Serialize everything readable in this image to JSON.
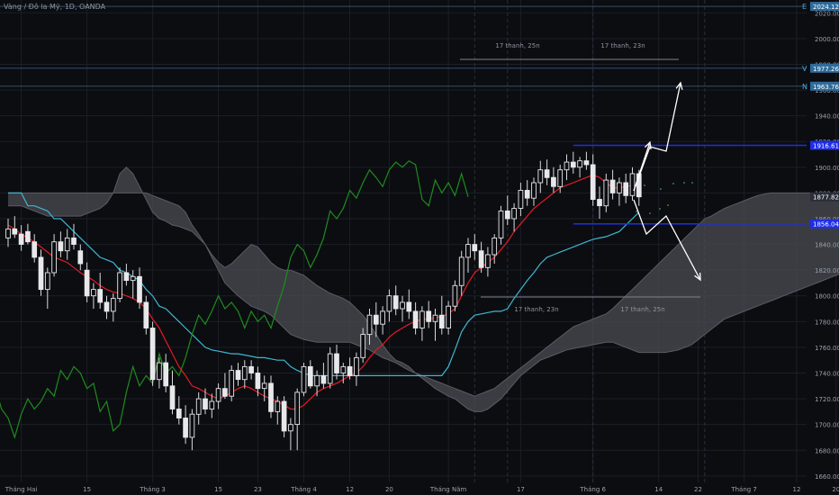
{
  "title": "Vàng / Đô la Mỹ, 1D, OANDA",
  "colors": {
    "background": "#0c0d11",
    "grid": "#1b1e27",
    "up": "#e8e8ea",
    "down": "#e8e8ea",
    "tenkan": "#e31b23",
    "kijun": "#3fb6d1",
    "chikou": "#1e8c1e",
    "cloud": "#4a4c53",
    "level": "#1f2de8",
    "axis_text": "#9aa0ab",
    "dashed_level": "#2f4f6a"
  },
  "chart_data": {
    "type": "candlestick",
    "ylim": [
      1655,
      2030
    ],
    "yticks": [
      "1660.000",
      "1680.000",
      "1700.000",
      "1720.000",
      "1740.000",
      "1760.000",
      "1780.000",
      "1800.000",
      "1820.000",
      "1840.000",
      "1860.000",
      "1880.000",
      "1900.000",
      "1920.000",
      "1940.000",
      "1960.000",
      "1980.000",
      "2000.000",
      "2020.000"
    ],
    "xticks": [
      {
        "label": "Tháng Hai",
        "i": 2
      },
      {
        "label": "15",
        "i": 12
      },
      {
        "label": "Tháng 3",
        "i": 22
      },
      {
        "label": "15",
        "i": 32
      },
      {
        "label": "23",
        "i": 38
      },
      {
        "label": "Tháng 4",
        "i": 45
      },
      {
        "label": "12",
        "i": 52
      },
      {
        "label": "20",
        "i": 58
      },
      {
        "label": "Tháng Năm",
        "i": 67
      },
      {
        "label": "17",
        "i": 78
      },
      {
        "label": "Tháng 6",
        "i": 89
      },
      {
        "label": "14",
        "i": 99
      },
      {
        "label": "22",
        "i": 105
      },
      {
        "label": "Tháng 7",
        "i": 112
      },
      {
        "label": "12",
        "i": 120
      },
      {
        "label": "20",
        "i": 126
      }
    ],
    "price_labels": [
      {
        "text": "2024.124",
        "price": 2025,
        "tag": "E"
      },
      {
        "text": "1977.265",
        "price": 1977,
        "tag": "V"
      },
      {
        "text": "1963.763",
        "price": 1963,
        "tag": "N"
      },
      {
        "text": "1916.615",
        "price": 1917,
        "tag": ""
      },
      {
        "text": "1877.820",
        "price": 1877,
        "tag": ""
      },
      {
        "text": "1856.040",
        "price": 1856,
        "tag": ""
      }
    ],
    "measure_labels": [
      {
        "text": "17 thanh, 25n",
        "i": 81,
        "price": 2006
      },
      {
        "text": "17 thanh, 23n",
        "i": 98,
        "price": 2006
      },
      {
        "text": "17 thanh, 23n",
        "i": 84,
        "price": 1790
      },
      {
        "text": "17 thanh, 25n",
        "i": 101,
        "price": 1790
      }
    ],
    "levels": [
      1917,
      1856
    ],
    "candles": [
      {
        "o": 1845,
        "h": 1860,
        "l": 1838,
        "c": 1852
      },
      {
        "o": 1852,
        "h": 1862,
        "l": 1845,
        "c": 1848
      },
      {
        "o": 1848,
        "h": 1855,
        "l": 1835,
        "c": 1840
      },
      {
        "o": 1850,
        "h": 1856,
        "l": 1840,
        "c": 1842
      },
      {
        "o": 1842,
        "h": 1848,
        "l": 1826,
        "c": 1830
      },
      {
        "o": 1830,
        "h": 1836,
        "l": 1800,
        "c": 1805
      },
      {
        "o": 1805,
        "h": 1822,
        "l": 1790,
        "c": 1818
      },
      {
        "o": 1818,
        "h": 1848,
        "l": 1815,
        "c": 1842
      },
      {
        "o": 1842,
        "h": 1850,
        "l": 1830,
        "c": 1835
      },
      {
        "o": 1835,
        "h": 1852,
        "l": 1828,
        "c": 1845
      },
      {
        "o": 1845,
        "h": 1856,
        "l": 1836,
        "c": 1840
      },
      {
        "o": 1835,
        "h": 1840,
        "l": 1820,
        "c": 1825
      },
      {
        "o": 1820,
        "h": 1826,
        "l": 1795,
        "c": 1800
      },
      {
        "o": 1800,
        "h": 1810,
        "l": 1790,
        "c": 1805
      },
      {
        "o": 1805,
        "h": 1818,
        "l": 1790,
        "c": 1795
      },
      {
        "o": 1795,
        "h": 1800,
        "l": 1782,
        "c": 1788
      },
      {
        "o": 1788,
        "h": 1802,
        "l": 1780,
        "c": 1798
      },
      {
        "o": 1798,
        "h": 1822,
        "l": 1795,
        "c": 1818
      },
      {
        "o": 1818,
        "h": 1825,
        "l": 1808,
        "c": 1812
      },
      {
        "o": 1812,
        "h": 1820,
        "l": 1798,
        "c": 1815
      },
      {
        "o": 1815,
        "h": 1822,
        "l": 1790,
        "c": 1795
      },
      {
        "o": 1795,
        "h": 1800,
        "l": 1770,
        "c": 1775
      },
      {
        "o": 1775,
        "h": 1780,
        "l": 1730,
        "c": 1735
      },
      {
        "o": 1735,
        "h": 1752,
        "l": 1728,
        "c": 1748
      },
      {
        "o": 1748,
        "h": 1755,
        "l": 1725,
        "c": 1730
      },
      {
        "o": 1730,
        "h": 1742,
        "l": 1708,
        "c": 1712
      },
      {
        "o": 1712,
        "h": 1722,
        "l": 1700,
        "c": 1705
      },
      {
        "o": 1705,
        "h": 1715,
        "l": 1685,
        "c": 1690
      },
      {
        "o": 1690,
        "h": 1712,
        "l": 1680,
        "c": 1708
      },
      {
        "o": 1708,
        "h": 1725,
        "l": 1700,
        "c": 1720
      },
      {
        "o": 1720,
        "h": 1728,
        "l": 1708,
        "c": 1712
      },
      {
        "o": 1712,
        "h": 1724,
        "l": 1705,
        "c": 1718
      },
      {
        "o": 1718,
        "h": 1732,
        "l": 1712,
        "c": 1728
      },
      {
        "o": 1728,
        "h": 1740,
        "l": 1720,
        "c": 1722
      },
      {
        "o": 1722,
        "h": 1746,
        "l": 1718,
        "c": 1742
      },
      {
        "o": 1742,
        "h": 1748,
        "l": 1730,
        "c": 1735
      },
      {
        "o": 1735,
        "h": 1750,
        "l": 1728,
        "c": 1745
      },
      {
        "o": 1745,
        "h": 1750,
        "l": 1735,
        "c": 1740
      },
      {
        "o": 1740,
        "h": 1745,
        "l": 1722,
        "c": 1728
      },
      {
        "o": 1728,
        "h": 1738,
        "l": 1718,
        "c": 1732
      },
      {
        "o": 1732,
        "h": 1738,
        "l": 1705,
        "c": 1710
      },
      {
        "o": 1710,
        "h": 1722,
        "l": 1700,
        "c": 1718
      },
      {
        "o": 1718,
        "h": 1722,
        "l": 1690,
        "c": 1695
      },
      {
        "o": 1695,
        "h": 1705,
        "l": 1680,
        "c": 1700
      },
      {
        "o": 1700,
        "h": 1728,
        "l": 1680,
        "c": 1725
      },
      {
        "o": 1725,
        "h": 1748,
        "l": 1722,
        "c": 1745
      },
      {
        "o": 1745,
        "h": 1750,
        "l": 1728,
        "c": 1730
      },
      {
        "o": 1730,
        "h": 1742,
        "l": 1722,
        "c": 1738
      },
      {
        "o": 1738,
        "h": 1748,
        "l": 1728,
        "c": 1732
      },
      {
        "o": 1732,
        "h": 1760,
        "l": 1728,
        "c": 1755
      },
      {
        "o": 1755,
        "h": 1762,
        "l": 1735,
        "c": 1740
      },
      {
        "o": 1740,
        "h": 1748,
        "l": 1732,
        "c": 1745
      },
      {
        "o": 1745,
        "h": 1752,
        "l": 1735,
        "c": 1738
      },
      {
        "o": 1738,
        "h": 1756,
        "l": 1730,
        "c": 1752
      },
      {
        "o": 1752,
        "h": 1775,
        "l": 1748,
        "c": 1770
      },
      {
        "o": 1770,
        "h": 1790,
        "l": 1762,
        "c": 1785
      },
      {
        "o": 1785,
        "h": 1795,
        "l": 1768,
        "c": 1778
      },
      {
        "o": 1778,
        "h": 1792,
        "l": 1770,
        "c": 1788
      },
      {
        "o": 1788,
        "h": 1805,
        "l": 1780,
        "c": 1800
      },
      {
        "o": 1800,
        "h": 1808,
        "l": 1785,
        "c": 1790
      },
      {
        "o": 1790,
        "h": 1800,
        "l": 1780,
        "c": 1795
      },
      {
        "o": 1795,
        "h": 1805,
        "l": 1782,
        "c": 1788
      },
      {
        "o": 1788,
        "h": 1795,
        "l": 1770,
        "c": 1775
      },
      {
        "o": 1775,
        "h": 1792,
        "l": 1765,
        "c": 1788
      },
      {
        "o": 1788,
        "h": 1796,
        "l": 1775,
        "c": 1780
      },
      {
        "o": 1780,
        "h": 1790,
        "l": 1765,
        "c": 1785
      },
      {
        "o": 1785,
        "h": 1800,
        "l": 1770,
        "c": 1775
      },
      {
        "o": 1775,
        "h": 1796,
        "l": 1770,
        "c": 1792
      },
      {
        "o": 1792,
        "h": 1812,
        "l": 1788,
        "c": 1808
      },
      {
        "o": 1808,
        "h": 1835,
        "l": 1800,
        "c": 1830
      },
      {
        "o": 1830,
        "h": 1845,
        "l": 1818,
        "c": 1840
      },
      {
        "o": 1840,
        "h": 1848,
        "l": 1828,
        "c": 1835
      },
      {
        "o": 1835,
        "h": 1842,
        "l": 1818,
        "c": 1822
      },
      {
        "o": 1822,
        "h": 1838,
        "l": 1815,
        "c": 1832
      },
      {
        "o": 1832,
        "h": 1848,
        "l": 1825,
        "c": 1845
      },
      {
        "o": 1845,
        "h": 1870,
        "l": 1840,
        "c": 1866
      },
      {
        "o": 1866,
        "h": 1878,
        "l": 1855,
        "c": 1860
      },
      {
        "o": 1860,
        "h": 1872,
        "l": 1850,
        "c": 1868
      },
      {
        "o": 1868,
        "h": 1888,
        "l": 1862,
        "c": 1882
      },
      {
        "o": 1882,
        "h": 1890,
        "l": 1870,
        "c": 1876
      },
      {
        "o": 1876,
        "h": 1892,
        "l": 1870,
        "c": 1888
      },
      {
        "o": 1888,
        "h": 1905,
        "l": 1880,
        "c": 1898
      },
      {
        "o": 1898,
        "h": 1906,
        "l": 1886,
        "c": 1892
      },
      {
        "o": 1892,
        "h": 1900,
        "l": 1880,
        "c": 1885
      },
      {
        "o": 1885,
        "h": 1902,
        "l": 1880,
        "c": 1898
      },
      {
        "o": 1898,
        "h": 1910,
        "l": 1890,
        "c": 1904
      },
      {
        "o": 1904,
        "h": 1912,
        "l": 1895,
        "c": 1900
      },
      {
        "o": 1900,
        "h": 1908,
        "l": 1892,
        "c": 1905
      },
      {
        "o": 1905,
        "h": 1912,
        "l": 1898,
        "c": 1902
      },
      {
        "o": 1902,
        "h": 1910,
        "l": 1870,
        "c": 1875
      },
      {
        "o": 1875,
        "h": 1885,
        "l": 1860,
        "c": 1870
      },
      {
        "o": 1870,
        "h": 1895,
        "l": 1865,
        "c": 1890
      },
      {
        "o": 1890,
        "h": 1898,
        "l": 1875,
        "c": 1880
      },
      {
        "o": 1880,
        "h": 1892,
        "l": 1870,
        "c": 1888
      },
      {
        "o": 1888,
        "h": 1895,
        "l": 1872,
        "c": 1878
      },
      {
        "o": 1878,
        "h": 1900,
        "l": 1874,
        "c": 1895
      },
      {
        "o": 1895,
        "h": 1898,
        "l": 1870,
        "c": 1877
      }
    ],
    "tenkan": [
      1855,
      1852,
      1848,
      1845,
      1842,
      1838,
      1834,
      1830,
      1828,
      1826,
      1822,
      1818,
      1815,
      1812,
      1808,
      1805,
      1803,
      1802,
      1800,
      1798,
      1795,
      1790,
      1782,
      1775,
      1765,
      1755,
      1745,
      1738,
      1730,
      1728,
      1725,
      1722,
      1720,
      1722,
      1725,
      1728,
      1730,
      1728,
      1725,
      1722,
      1720,
      1718,
      1715,
      1712,
      1712,
      1715,
      1720,
      1725,
      1728,
      1730,
      1732,
      1735,
      1738,
      1740,
      1745,
      1752,
      1758,
      1762,
      1768,
      1772,
      1775,
      1778,
      1780,
      1782,
      1782,
      1783,
      1784,
      1786,
      1790,
      1800,
      1810,
      1818,
      1822,
      1826,
      1830,
      1836,
      1842,
      1850,
      1856,
      1862,
      1868,
      1872,
      1876,
      1880,
      1884,
      1886,
      1888,
      1890,
      1892,
      1894,
      1892,
      1888,
      1884,
      1884,
      1885,
      1886,
      1886
    ],
    "kijun": [
      1880,
      1880,
      1880,
      1870,
      1870,
      1868,
      1866,
      1860,
      1860,
      1855,
      1850,
      1845,
      1840,
      1835,
      1830,
      1828,
      1826,
      1820,
      1818,
      1815,
      1812,
      1805,
      1800,
      1792,
      1790,
      1785,
      1780,
      1775,
      1770,
      1765,
      1760,
      1758,
      1757,
      1756,
      1755,
      1755,
      1754,
      1753,
      1752,
      1752,
      1751,
      1750,
      1750,
      1745,
      1742,
      1740,
      1738,
      1738,
      1738,
      1738,
      1738,
      1738,
      1738,
      1738,
      1738,
      1738,
      1738,
      1738,
      1738,
      1738,
      1738,
      1738,
      1738,
      1738,
      1738,
      1738,
      1738,
      1745,
      1758,
      1772,
      1780,
      1785,
      1786,
      1787,
      1788,
      1788,
      1790,
      1798,
      1805,
      1812,
      1818,
      1825,
      1830,
      1832,
      1834,
      1836,
      1838,
      1840,
      1842,
      1844,
      1845,
      1846,
      1848,
      1850,
      1855,
      1860,
      1865
    ],
    "cloud_a": [
      1880,
      1880,
      1880,
      1880,
      1880,
      1880,
      1880,
      1880,
      1880,
      1880,
      1880,
      1880,
      1880,
      1880,
      1880,
      1880,
      1880,
      1880,
      1880,
      1880,
      1880,
      1880,
      1878,
      1876,
      1874,
      1872,
      1870,
      1865,
      1855,
      1848,
      1840,
      1830,
      1820,
      1810,
      1805,
      1800,
      1796,
      1792,
      1790,
      1788,
      1785,
      1780,
      1775,
      1770,
      1768,
      1766,
      1765,
      1764,
      1764,
      1764,
      1764,
      1764,
      1764,
      1762,
      1760,
      1758,
      1755,
      1752,
      1750,
      1748,
      1745,
      1742,
      1740,
      1738,
      1736,
      1734,
      1732,
      1730,
      1728,
      1726,
      1724,
      1722,
      1724,
      1726,
      1728,
      1732,
      1736,
      1740,
      1744,
      1748,
      1752,
      1756,
      1760,
      1764,
      1768,
      1772,
      1776,
      1778,
      1780,
      1782,
      1784,
      1786,
      1790,
      1795,
      1800,
      1805,
      1810,
      1815,
      1820,
      1825,
      1830,
      1835,
      1840,
      1845,
      1850,
      1855,
      1860,
      1862,
      1865,
      1868,
      1870,
      1872,
      1874,
      1876,
      1878,
      1879,
      1880,
      1880,
      1880,
      1880,
      1880,
      1880,
      1880,
      1880,
      1880,
      1880,
      1880,
      1880,
      1880,
      1880
    ],
    "cloud_b": [
      1870,
      1870,
      1870,
      1868,
      1866,
      1864,
      1862,
      1862,
      1862,
      1862,
      1862,
      1862,
      1864,
      1866,
      1868,
      1872,
      1880,
      1895,
      1900,
      1895,
      1885,
      1875,
      1865,
      1860,
      1858,
      1855,
      1854,
      1852,
      1850,
      1845,
      1840,
      1832,
      1826,
      1822,
      1825,
      1830,
      1835,
      1840,
      1838,
      1832,
      1826,
      1822,
      1820,
      1820,
      1818,
      1816,
      1812,
      1808,
      1805,
      1802,
      1800,
      1798,
      1795,
      1790,
      1785,
      1778,
      1770,
      1762,
      1755,
      1750,
      1748,
      1745,
      1740,
      1736,
      1732,
      1728,
      1725,
      1722,
      1720,
      1716,
      1712,
      1710,
      1710,
      1712,
      1716,
      1720,
      1726,
      1732,
      1738,
      1742,
      1746,
      1750,
      1752,
      1754,
      1756,
      1758,
      1759,
      1760,
      1761,
      1762,
      1763,
      1764,
      1764,
      1762,
      1760,
      1758,
      1756,
      1756,
      1756,
      1756,
      1756,
      1757,
      1758,
      1760,
      1762,
      1766,
      1770,
      1774,
      1778,
      1782,
      1784,
      1786,
      1788,
      1790,
      1792,
      1794,
      1796,
      1798,
      1800,
      1802,
      1804,
      1806,
      1808,
      1810,
      1812,
      1814,
      1816,
      1818,
      1820,
      1822
    ]
  }
}
